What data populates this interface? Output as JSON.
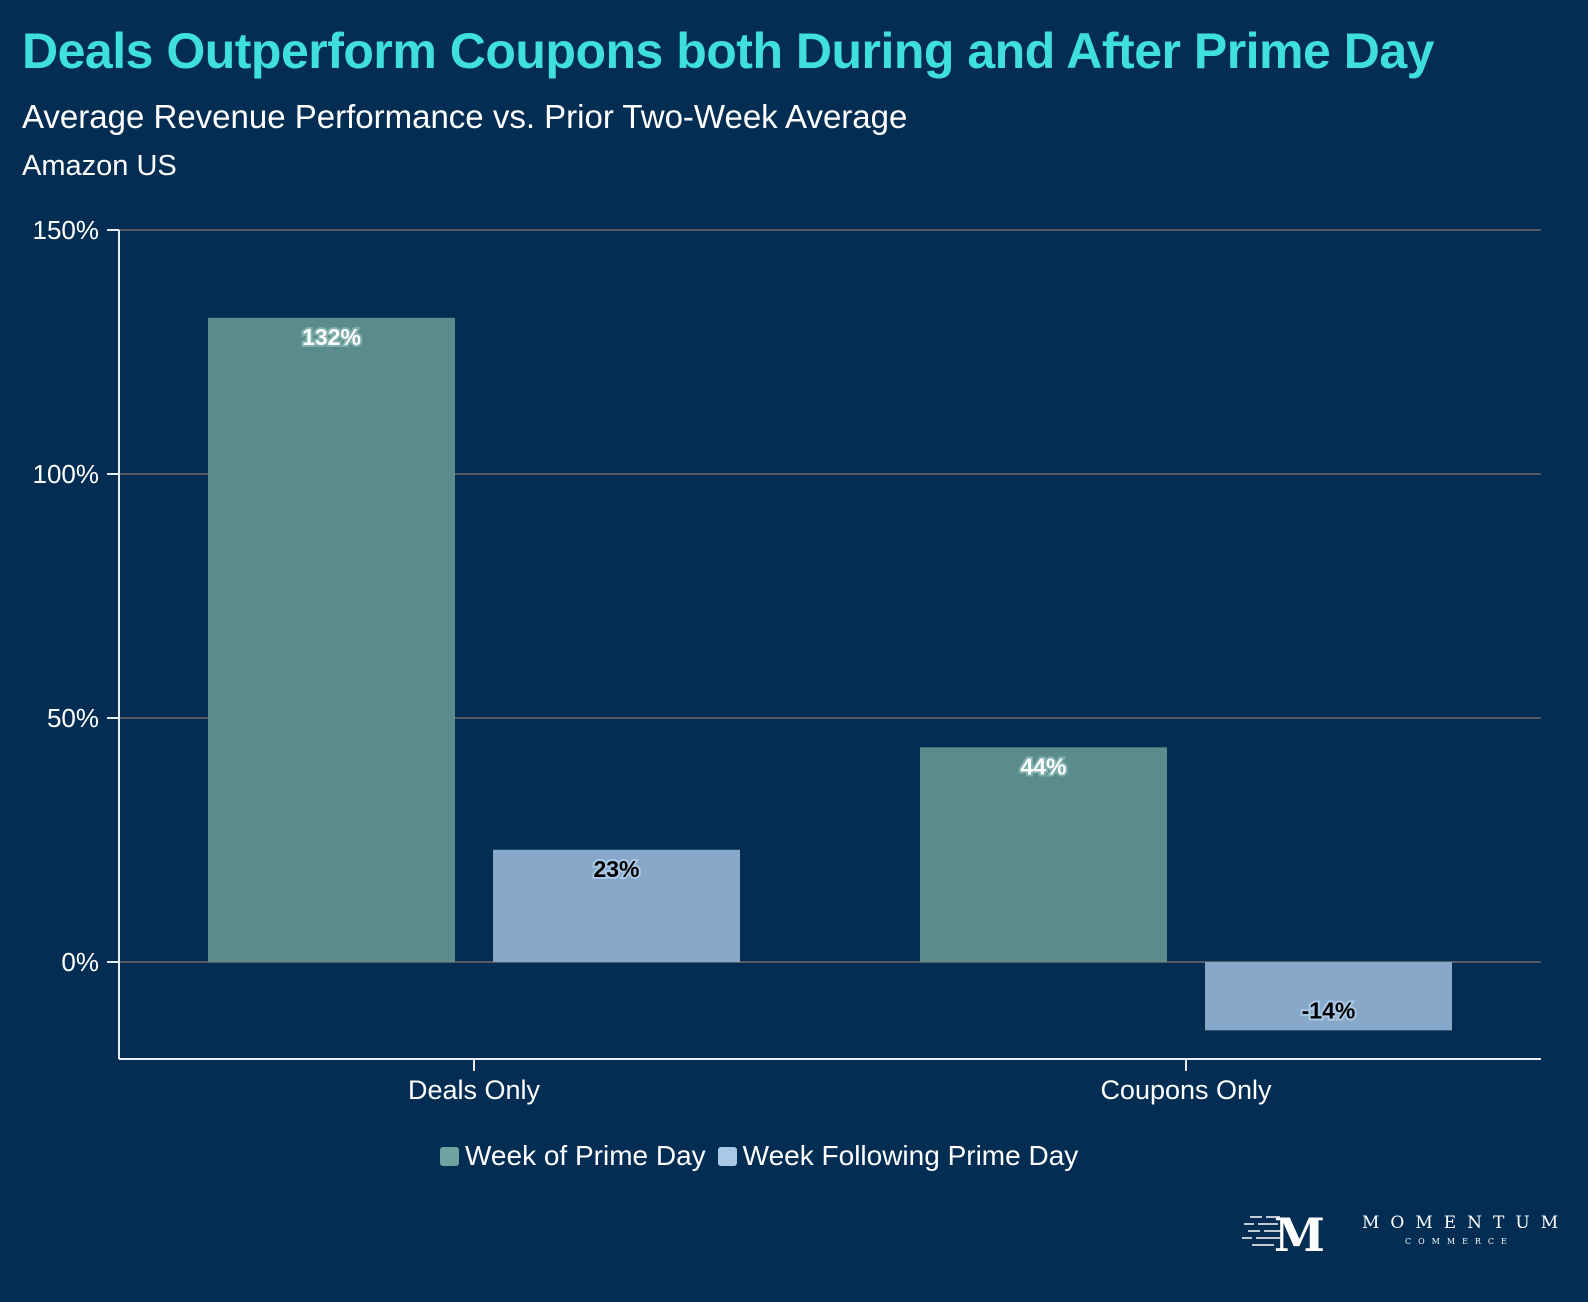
{
  "header": {
    "title": "Deals Outperform Coupons both During and After Prime Day",
    "subtitle": "Average Revenue Performance vs. Prior Two-Week Average",
    "region": "Amazon US"
  },
  "colors": {
    "background": "#032d52",
    "title": "#3fe0dc",
    "series_week_of": "#5b8b8b",
    "series_week_following": "#87a8c8",
    "legend_week_of": "#6fa39f",
    "legend_week_following": "#a9c8e6",
    "gridline": "#555c63",
    "axis": "#e8eef4"
  },
  "chart_data": {
    "type": "bar",
    "title": "Deals Outperform Coupons both During and After Prime Day",
    "subtitle": "Average Revenue Performance vs. Prior Two-Week Average",
    "categories": [
      "Deals Only",
      "Coupons Only"
    ],
    "series": [
      {
        "name": "Week of Prime Day",
        "values": [
          132,
          44
        ],
        "labels": [
          "132%",
          "44%"
        ]
      },
      {
        "name": "Week Following Prime Day",
        "values": [
          23,
          -14
        ],
        "labels": [
          "23%",
          "-14%"
        ]
      }
    ],
    "yticks": [
      0,
      50,
      100,
      150
    ],
    "ytick_labels": [
      "0%",
      "50%",
      "100%",
      "150%"
    ],
    "ylim": [
      -20,
      150
    ],
    "xlabel": "",
    "ylabel": "",
    "grid": true,
    "legend_position": "bottom-center"
  },
  "logo": {
    "mark": "M",
    "name": "MOMENTUM",
    "tagline": "COMMERCE"
  }
}
